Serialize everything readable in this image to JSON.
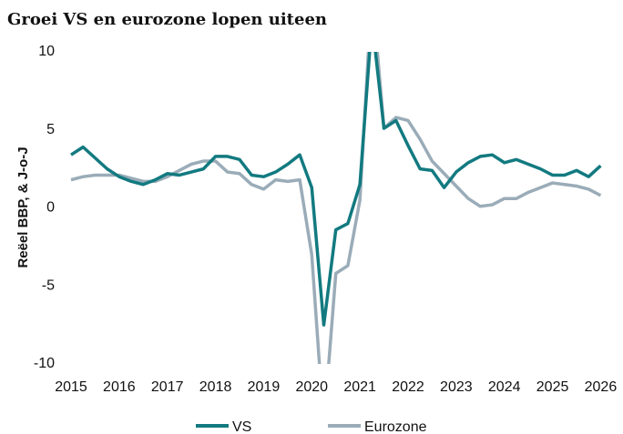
{
  "chart_data": {
    "type": "line",
    "title": "Groei VS en eurozone lopen uiteen",
    "y_label": "Reëel BBP, & J-o-J",
    "x": [
      2015,
      2015.25,
      2015.5,
      2015.75,
      2016,
      2016.25,
      2016.5,
      2016.75,
      2017,
      2017.25,
      2017.5,
      2017.75,
      2018,
      2018.25,
      2018.5,
      2018.75,
      2019,
      2019.25,
      2019.5,
      2019.75,
      2020,
      2020.25,
      2020.5,
      2020.75,
      2021,
      2021.25,
      2021.5,
      2021.75,
      2022,
      2022.25,
      2022.5,
      2022.75,
      2023,
      2023.25,
      2023.5,
      2023.75,
      2024,
      2024.25,
      2024.5,
      2024.75,
      2025,
      2025.25,
      2025.5,
      2025.75,
      2026
    ],
    "series": [
      {
        "name": "VS",
        "color": "#127a80",
        "values": [
          3.4,
          3.9,
          3.2,
          2.5,
          2.0,
          1.7,
          1.5,
          1.8,
          2.2,
          2.1,
          2.3,
          2.5,
          3.3,
          3.3,
          3.1,
          2.1,
          2.0,
          2.3,
          2.8,
          3.4,
          1.3,
          -7.5,
          -1.4,
          -1.0,
          1.5,
          12,
          5.1,
          5.6,
          4.0,
          2.5,
          2.4,
          1.3,
          2.3,
          2.9,
          3.3,
          3.4,
          2.9,
          3.1,
          2.8,
          2.5,
          2.1,
          2.1,
          2.4,
          2.0,
          2.7
        ]
      },
      {
        "name": "Eurozone",
        "color": "#9aacb8",
        "values": [
          1.8,
          2.0,
          2.1,
          2.1,
          2.1,
          1.9,
          1.7,
          1.7,
          2.0,
          2.4,
          2.8,
          3.0,
          3.0,
          2.3,
          2.2,
          1.5,
          1.2,
          1.8,
          1.7,
          1.8,
          -3.0,
          -14,
          -4.2,
          -3.7,
          0.5,
          14,
          5.1,
          5.8,
          5.6,
          4.4,
          3.0,
          2.2,
          1.4,
          0.6,
          0.1,
          0.2,
          0.6,
          0.6,
          1.0,
          1.3,
          1.6,
          1.5,
          1.4,
          1.2,
          0.8
        ]
      }
    ],
    "xlim": [
      2015,
      2026.2
    ],
    "xticks": [
      2015,
      2016,
      2017,
      2018,
      2019,
      2020,
      2021,
      2022,
      2023,
      2024,
      2025,
      2026
    ],
    "ylim": [
      -10,
      10
    ],
    "yticks": [
      10,
      5,
      0,
      -5,
      -10
    ]
  }
}
